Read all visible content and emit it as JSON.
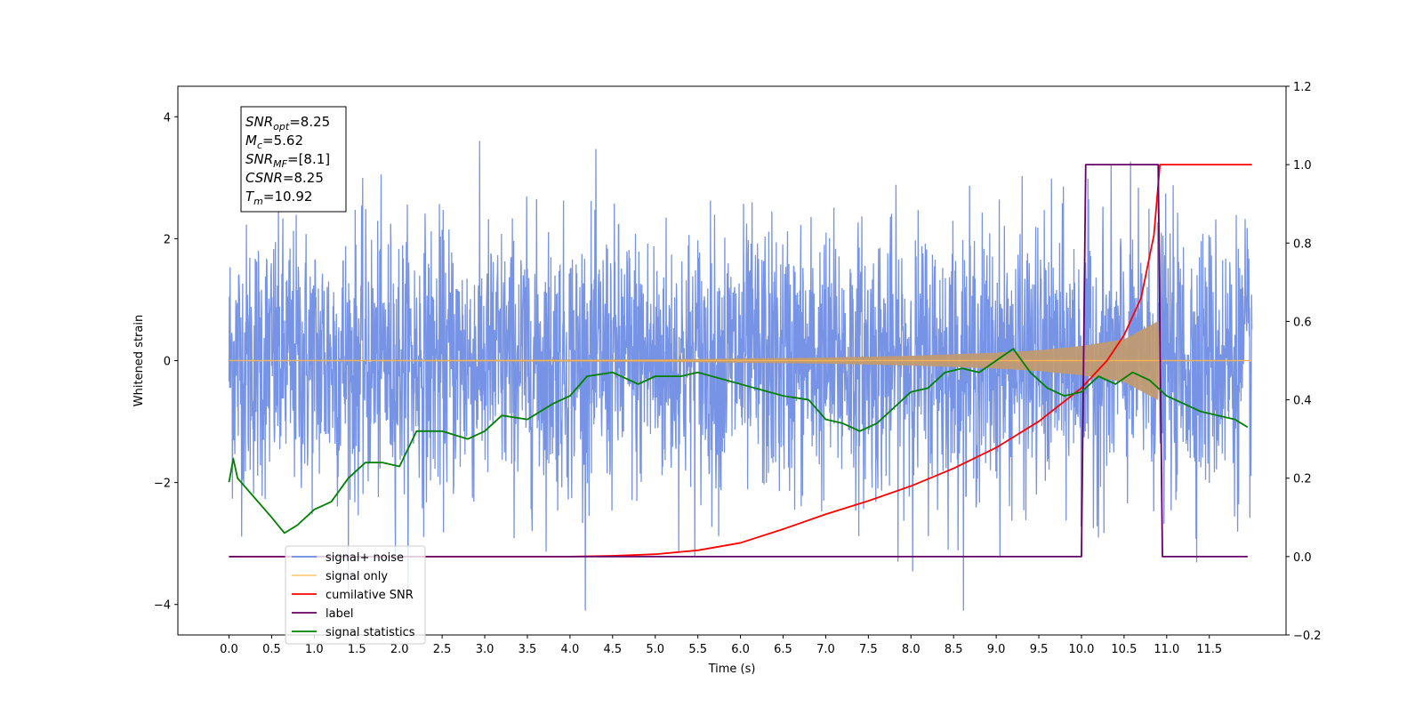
{
  "chart_data": {
    "type": "line",
    "xlabel": "Time (s)",
    "ylabel": "Whitened strain",
    "xlim": [
      -0.6,
      12.4
    ],
    "ylim": [
      -4.5,
      4.5
    ],
    "y2lim": [
      -0.2,
      1.2
    ],
    "xticks": [
      "0.0",
      "0.5",
      "1.0",
      "1.5",
      "2.0",
      "2.5",
      "3.0",
      "3.5",
      "4.0",
      "4.5",
      "5.0",
      "5.5",
      "6.0",
      "6.5",
      "7.0",
      "7.5",
      "8.0",
      "8.5",
      "9.0",
      "9.5",
      "10.0",
      "10.5",
      "11.0",
      "11.5"
    ],
    "yticks": [
      "4",
      "2",
      "0",
      "−2",
      "−4"
    ],
    "y2ticks": [
      "1.2",
      "1.0",
      "0.8",
      "0.6",
      "0.4",
      "0.2",
      "0.0",
      "−0.2"
    ],
    "annotation": {
      "lines": [
        {
          "sym": "SNR",
          "sub": "opt",
          "val": "=8.25"
        },
        {
          "sym": "M",
          "sub": "c",
          "val": "=5.62"
        },
        {
          "sym": "SNR",
          "sub": "MF",
          "val": "=[8.1]"
        },
        {
          "sym": "CSNR",
          "sub": "",
          "val": "=8.25"
        },
        {
          "sym": "T",
          "sub": "m",
          "val": "=10.92"
        }
      ]
    },
    "legend_position": "lower-left",
    "series": [
      {
        "name": "signal+ noise",
        "color": "#6f8de4",
        "axis": "left",
        "x_range": [
          0,
          12
        ],
        "values": "Gaussian noise, sigma ≈ 1.1, range approx [-4.1, 4.1]"
      },
      {
        "name": "signal only",
        "color": "#ffb84d",
        "fill_color": "#c09a72",
        "axis": "left",
        "envelope": {
          "x": [
            0,
            5.0,
            7.0,
            8.0,
            9.0,
            9.5,
            10.0,
            10.5,
            10.9,
            10.92,
            12.0
          ],
          "amp": [
            0.002,
            0.02,
            0.05,
            0.08,
            0.13,
            0.17,
            0.24,
            0.35,
            0.65,
            0.01,
            0.005
          ]
        }
      },
      {
        "name": "cumilative SNR",
        "color": "#ff0000",
        "axis": "right",
        "x": [
          0,
          4.0,
          4.5,
          5.0,
          5.5,
          6.0,
          6.5,
          7.0,
          7.5,
          8.0,
          8.5,
          9.0,
          9.5,
          10.0,
          10.3,
          10.5,
          10.7,
          10.85,
          10.92,
          12.0
        ],
        "values": [
          0,
          0,
          0.002,
          0.006,
          0.016,
          0.035,
          0.07,
          0.108,
          0.142,
          0.18,
          0.225,
          0.278,
          0.345,
          0.43,
          0.5,
          0.565,
          0.66,
          0.82,
          1.0,
          1.0
        ]
      },
      {
        "name": "label",
        "color": "#660066",
        "axis": "right",
        "x": [
          0,
          10.0,
          10.05,
          10.9,
          10.95,
          11.95
        ],
        "values": [
          0,
          0,
          1,
          1,
          0,
          0
        ]
      },
      {
        "name": "signal statistics",
        "color": "#008000",
        "axis": "right",
        "x": [
          0,
          0.05,
          0.1,
          0.3,
          0.5,
          0.65,
          0.8,
          1.0,
          1.2,
          1.4,
          1.6,
          1.8,
          2.0,
          2.2,
          2.3,
          2.5,
          2.8,
          3.0,
          3.2,
          3.5,
          3.8,
          4.0,
          4.2,
          4.5,
          4.8,
          5.0,
          5.3,
          5.5,
          6.0,
          6.5,
          6.8,
          7.0,
          7.2,
          7.4,
          7.6,
          7.8,
          8.0,
          8.2,
          8.4,
          8.6,
          8.8,
          9.0,
          9.2,
          9.4,
          9.6,
          9.8,
          10.0,
          10.2,
          10.4,
          10.6,
          10.8,
          11.0,
          11.2,
          11.4,
          11.6,
          11.8,
          11.95
        ],
        "values": [
          0.19,
          0.25,
          0.2,
          0.15,
          0.1,
          0.06,
          0.08,
          0.12,
          0.14,
          0.2,
          0.24,
          0.24,
          0.23,
          0.32,
          0.32,
          0.32,
          0.3,
          0.32,
          0.36,
          0.35,
          0.39,
          0.41,
          0.46,
          0.47,
          0.44,
          0.46,
          0.46,
          0.47,
          0.44,
          0.41,
          0.4,
          0.35,
          0.34,
          0.32,
          0.34,
          0.38,
          0.42,
          0.43,
          0.47,
          0.48,
          0.47,
          0.5,
          0.53,
          0.47,
          0.43,
          0.41,
          0.42,
          0.46,
          0.44,
          0.47,
          0.45,
          0.41,
          0.39,
          0.37,
          0.36,
          0.35,
          0.33
        ]
      }
    ]
  }
}
